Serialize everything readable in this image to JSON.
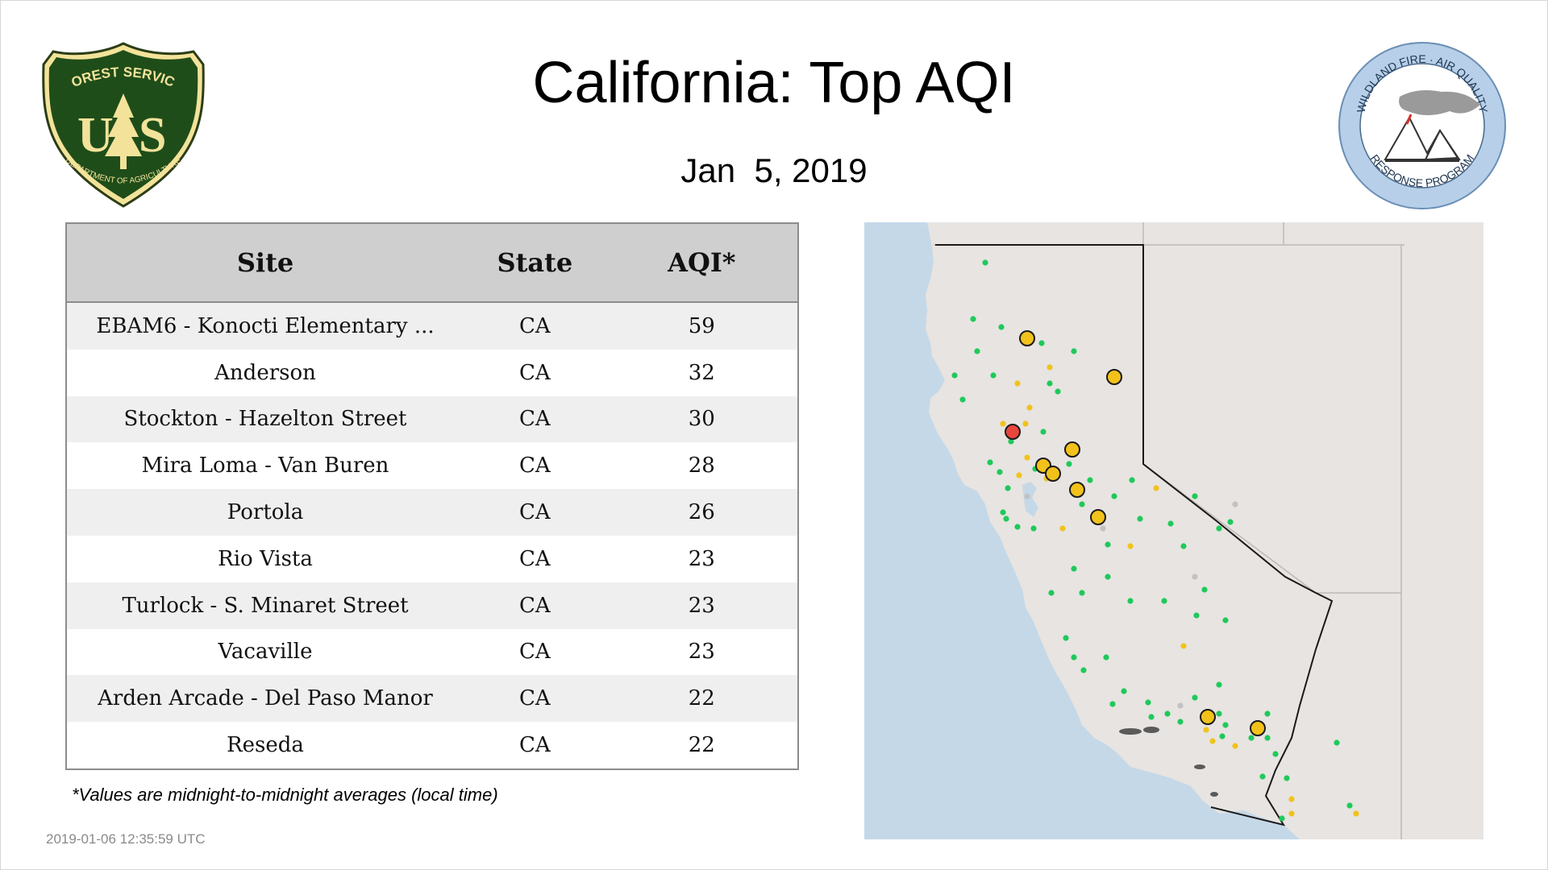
{
  "header": {
    "title": "California: Top AQI",
    "date": "Jan  5, 2019"
  },
  "logos": {
    "forest_service": {
      "icon": "forest-service-shield-icon",
      "top_text": "FOREST SERVICE",
      "letters": "U S",
      "bottom_text": "DEPARTMENT OF AGRICULTURE"
    },
    "wildland_fire": {
      "icon": "wildland-fire-air-quality-seal-icon",
      "top_text": "WILDLAND FIRE · AIR QUALITY",
      "bottom_text": "RESPONSE PROGRAM"
    }
  },
  "table": {
    "headers": {
      "site": "Site",
      "state": "State",
      "aqi": "AQI*"
    },
    "rows": [
      {
        "site": "EBAM6 - Konocti Elementary ...",
        "state": "CA",
        "aqi": "59"
      },
      {
        "site": "Anderson",
        "state": "CA",
        "aqi": "32"
      },
      {
        "site": "Stockton - Hazelton Street",
        "state": "CA",
        "aqi": "30"
      },
      {
        "site": "Mira Loma - Van Buren",
        "state": "CA",
        "aqi": "28"
      },
      {
        "site": "Portola",
        "state": "CA",
        "aqi": "26"
      },
      {
        "site": "Rio Vista",
        "state": "CA",
        "aqi": "23"
      },
      {
        "site": "Turlock - S. Minaret Street",
        "state": "CA",
        "aqi": "23"
      },
      {
        "site": "Vacaville",
        "state": "CA",
        "aqi": "23"
      },
      {
        "site": "Arden Arcade - Del Paso Manor",
        "state": "CA",
        "aqi": "22"
      },
      {
        "site": "Reseda",
        "state": "CA",
        "aqi": "22"
      }
    ]
  },
  "footnote": "*Values are midnight-to-midnight averages (local time)",
  "timestamp": "2019-01-06 12:35:59 UTC",
  "map": {
    "colors": {
      "water": "#c5d8e8",
      "land": "#e7e4e1",
      "good": "#1fc95a",
      "moderate": "#f2c21b",
      "unhealthy_sensitive": "#e8463d",
      "no_data": "#c2c2c2"
    }
  }
}
